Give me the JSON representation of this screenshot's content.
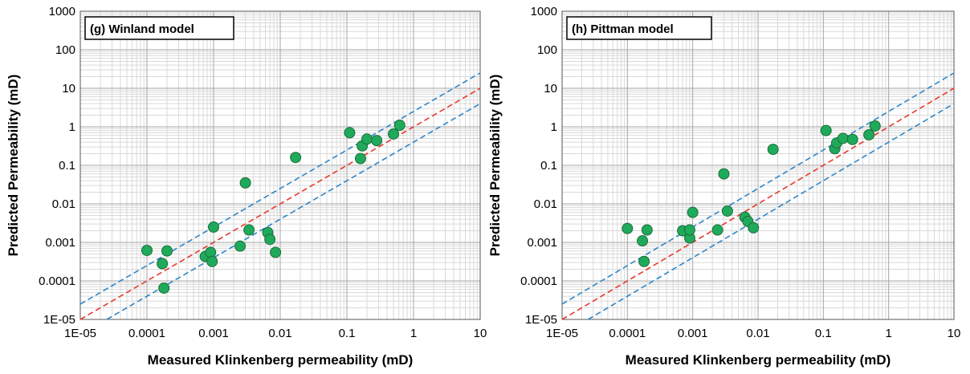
{
  "chart_data": [
    {
      "type": "scatter",
      "title": "(g) Winland model",
      "xlabel": "Measured Klinkenberg permeability (mD)",
      "ylabel": "Predicted Permeability (mD)",
      "xscale": "log",
      "yscale": "log",
      "xlim": [
        1e-05,
        10
      ],
      "ylim": [
        1e-05,
        1000
      ],
      "xticks": [
        "1E-05",
        "0.0001",
        "0.001",
        "0.01",
        "0.1",
        "1",
        "10"
      ],
      "yticks": [
        "1E-05",
        "0.0001",
        "0.001",
        "0.01",
        "0.1",
        "1",
        "10",
        "100",
        "1000"
      ],
      "grid": true,
      "legend": "none",
      "colors": {
        "points": "#1faa5b",
        "point_edge": "#1d6b3a",
        "unity_line": "#e8392c",
        "bound_lines": "#2e86c8"
      },
      "lines": [
        {
          "kind": "unity",
          "factor": 1
        },
        {
          "kind": "upper-bound",
          "factor": 2.5
        },
        {
          "kind": "lower-bound",
          "factor": 0.4
        }
      ],
      "points": [
        {
          "x": 0.0001,
          "y": 0.00062
        },
        {
          "x": 0.00017,
          "y": 0.00028
        },
        {
          "x": 0.00018,
          "y": 6.5e-05
        },
        {
          "x": 0.0002,
          "y": 0.0006
        },
        {
          "x": 0.00075,
          "y": 0.00043
        },
        {
          "x": 0.0009,
          "y": 0.00055
        },
        {
          "x": 0.00095,
          "y": 0.00032
        },
        {
          "x": 0.001,
          "y": 0.0025
        },
        {
          "x": 0.0025,
          "y": 0.0008
        },
        {
          "x": 0.003,
          "y": 0.035
        },
        {
          "x": 0.0034,
          "y": 0.0021
        },
        {
          "x": 0.0065,
          "y": 0.0018
        },
        {
          "x": 0.007,
          "y": 0.0012
        },
        {
          "x": 0.0085,
          "y": 0.00055
        },
        {
          "x": 0.017,
          "y": 0.16
        },
        {
          "x": 0.11,
          "y": 0.7
        },
        {
          "x": 0.16,
          "y": 0.15
        },
        {
          "x": 0.17,
          "y": 0.32
        },
        {
          "x": 0.2,
          "y": 0.48
        },
        {
          "x": 0.28,
          "y": 0.44
        },
        {
          "x": 0.5,
          "y": 0.65
        },
        {
          "x": 0.62,
          "y": 1.1
        }
      ]
    },
    {
      "type": "scatter",
      "title": "(h) Pittman model",
      "xlabel": "Measured Klinkenberg permeability (mD)",
      "ylabel": "Predicted Permeability (mD)",
      "xscale": "log",
      "yscale": "log",
      "xlim": [
        1e-05,
        10
      ],
      "ylim": [
        1e-05,
        1000
      ],
      "xticks": [
        "1E-05",
        "0.0001",
        "0.001",
        "0.01",
        "0.1",
        "1",
        "10"
      ],
      "yticks": [
        "1E-05",
        "0.0001",
        "0.001",
        "0.01",
        "0.1",
        "1",
        "10",
        "100",
        "1000"
      ],
      "grid": true,
      "legend": "none",
      "colors": {
        "points": "#1faa5b",
        "point_edge": "#1d6b3a",
        "unity_line": "#e8392c",
        "bound_lines": "#2e86c8"
      },
      "lines": [
        {
          "kind": "unity",
          "factor": 1
        },
        {
          "kind": "upper-bound",
          "factor": 2.5
        },
        {
          "kind": "lower-bound",
          "factor": 0.4
        }
      ],
      "points": [
        {
          "x": 0.0001,
          "y": 0.0023
        },
        {
          "x": 0.00017,
          "y": 0.0011
        },
        {
          "x": 0.00018,
          "y": 0.00032
        },
        {
          "x": 0.0002,
          "y": 0.0021
        },
        {
          "x": 0.0007,
          "y": 0.002
        },
        {
          "x": 0.0009,
          "y": 0.0013
        },
        {
          "x": 0.0009,
          "y": 0.0021
        },
        {
          "x": 0.001,
          "y": 0.006
        },
        {
          "x": 0.0024,
          "y": 0.0021
        },
        {
          "x": 0.003,
          "y": 0.06
        },
        {
          "x": 0.0034,
          "y": 0.0065
        },
        {
          "x": 0.0063,
          "y": 0.0045
        },
        {
          "x": 0.007,
          "y": 0.0035
        },
        {
          "x": 0.0085,
          "y": 0.0024
        },
        {
          "x": 0.017,
          "y": 0.26
        },
        {
          "x": 0.11,
          "y": 0.8
        },
        {
          "x": 0.15,
          "y": 0.27
        },
        {
          "x": 0.16,
          "y": 0.38
        },
        {
          "x": 0.2,
          "y": 0.5
        },
        {
          "x": 0.28,
          "y": 0.47
        },
        {
          "x": 0.5,
          "y": 0.62
        },
        {
          "x": 0.62,
          "y": 1.05
        }
      ]
    }
  ]
}
